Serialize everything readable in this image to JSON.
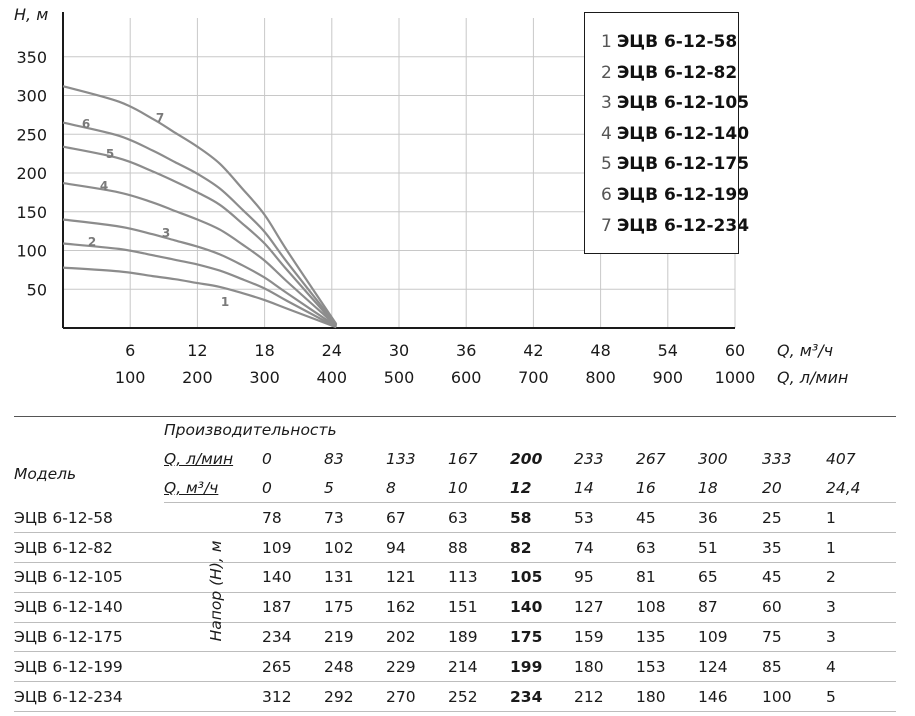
{
  "chart_data": {
    "type": "line",
    "ylabel": "H, м",
    "xlabel_primary": "Q, м³/ч",
    "xlabel_secondary": "Q, л/мин",
    "yticks": [
      50,
      100,
      150,
      200,
      250,
      300,
      350
    ],
    "xticks_primary": [
      "6",
      "12",
      "18",
      "24",
      "30",
      "36",
      "42",
      "48",
      "54",
      "60"
    ],
    "xticks_secondary": [
      "100",
      "200",
      "300",
      "400",
      "500",
      "600",
      "700",
      "800",
      "900",
      "1000"
    ],
    "xlim": [
      0,
      60
    ],
    "ylim": [
      0,
      400
    ],
    "grid": true,
    "legend_position": "top-right",
    "x": [
      0,
      5,
      8,
      10,
      12,
      14,
      16,
      18,
      20,
      24.4
    ],
    "series": [
      {
        "label": "1",
        "name": "ЭЦВ 6-12-58",
        "values": [
          78,
          73,
          67,
          63,
          58,
          53,
          45,
          36,
          25,
          1
        ]
      },
      {
        "label": "2",
        "name": "ЭЦВ 6-12-82",
        "values": [
          109,
          102,
          94,
          88,
          82,
          74,
          63,
          51,
          35,
          1
        ]
      },
      {
        "label": "3",
        "name": "ЭЦВ 6-12-105",
        "values": [
          140,
          131,
          121,
          113,
          105,
          95,
          81,
          65,
          45,
          2
        ]
      },
      {
        "label": "4",
        "name": "ЭЦВ 6-12-140",
        "values": [
          187,
          175,
          162,
          151,
          140,
          127,
          108,
          87,
          60,
          3
        ]
      },
      {
        "label": "5",
        "name": "ЭЦВ 6-12-175",
        "values": [
          234,
          219,
          202,
          189,
          175,
          159,
          135,
          109,
          75,
          3
        ]
      },
      {
        "label": "6",
        "name": "ЭЦВ 6-12-199",
        "values": [
          265,
          248,
          229,
          214,
          199,
          180,
          153,
          124,
          85,
          4
        ]
      },
      {
        "label": "7",
        "name": "ЭЦВ 6-12-234",
        "values": [
          312,
          292,
          270,
          252,
          234,
          212,
          180,
          146,
          100,
          5
        ]
      }
    ]
  },
  "table": {
    "model_header": "Модель",
    "performance_header": "Производительность",
    "unit_lmin": "Q, л/мин",
    "unit_m3h": "Q, м³/ч",
    "head_label": "Напор (Н), м",
    "q_lmin": [
      "0",
      "83",
      "133",
      "167",
      "200",
      "233",
      "267",
      "300",
      "333",
      "407"
    ],
    "q_m3h": [
      "0",
      "5",
      "8",
      "10",
      "12",
      "14",
      "16",
      "18",
      "20",
      "24,4"
    ],
    "bold_column_index": 4,
    "rows": [
      {
        "model": "ЭЦВ 6-12-58",
        "values": [
          "78",
          "73",
          "67",
          "63",
          "58",
          "53",
          "45",
          "36",
          "25",
          "1"
        ]
      },
      {
        "model": "ЭЦВ 6-12-82",
        "values": [
          "109",
          "102",
          "94",
          "88",
          "82",
          "74",
          "63",
          "51",
          "35",
          "1"
        ]
      },
      {
        "model": "ЭЦВ 6-12-105",
        "values": [
          "140",
          "131",
          "121",
          "113",
          "105",
          "95",
          "81",
          "65",
          "45",
          "2"
        ]
      },
      {
        "model": "ЭЦВ 6-12-140",
        "values": [
          "187",
          "175",
          "162",
          "151",
          "140",
          "127",
          "108",
          "87",
          "60",
          "3"
        ]
      },
      {
        "model": "ЭЦВ 6-12-175",
        "values": [
          "234",
          "219",
          "202",
          "189",
          "175",
          "159",
          "135",
          "109",
          "75",
          "3"
        ]
      },
      {
        "model": "ЭЦВ 6-12-199",
        "values": [
          "265",
          "248",
          "229",
          "214",
          "199",
          "180",
          "153",
          "124",
          "85",
          "4"
        ]
      },
      {
        "model": "ЭЦВ 6-12-234",
        "values": [
          "312",
          "292",
          "270",
          "252",
          "234",
          "212",
          "180",
          "146",
          "100",
          "5"
        ]
      }
    ]
  },
  "colors": {
    "curve": "#8c8c8c",
    "curve_label": "#7a7a7a",
    "grid": "#c8c8c8",
    "axis": "#1a1a1a",
    "row_line": "#bdbdbd"
  }
}
